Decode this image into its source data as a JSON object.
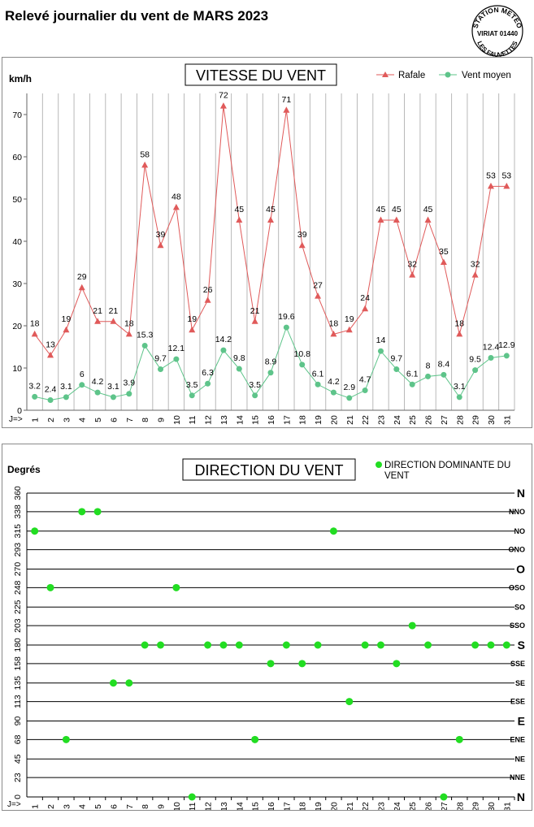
{
  "header": {
    "title": "Relevé journalier du vent de MARS 2023",
    "stamp_line1": "STATION METEO",
    "stamp_line2": "VIRIAT 01440",
    "stamp_line3": "LES FAUVETTES"
  },
  "chart_data": [
    {
      "type": "line",
      "title": "VITESSE DU VENT",
      "ylabel": "km/h",
      "xlabel": "J=>",
      "x": [
        1,
        2,
        3,
        4,
        5,
        6,
        7,
        8,
        9,
        10,
        11,
        12,
        13,
        14,
        15,
        16,
        17,
        18,
        19,
        20,
        21,
        22,
        23,
        24,
        25,
        26,
        27,
        28,
        29,
        30,
        31
      ],
      "ylim": [
        0,
        75
      ],
      "yticks": [
        0,
        10,
        20,
        30,
        40,
        50,
        60,
        70
      ],
      "grid": "vertical",
      "legend": "top-right",
      "series": [
        {
          "name": "Rafale",
          "color": "#e05a5a",
          "marker": "triangle",
          "values": [
            18,
            13,
            19,
            29,
            21,
            21,
            18,
            58,
            39,
            48,
            19,
            26,
            72,
            45,
            21,
            45,
            71,
            39,
            27,
            18,
            19,
            24,
            45,
            45,
            32,
            45,
            35,
            18,
            32,
            53,
            53
          ]
        },
        {
          "name": "Vent moyen",
          "color": "#5ec48a",
          "marker": "circle",
          "values": [
            3.2,
            2.4,
            3.1,
            6,
            4.2,
            3.1,
            3.9,
            15.3,
            9.7,
            12.1,
            3.5,
            6.3,
            14.2,
            9.8,
            3.5,
            8.9,
            19.6,
            10.8,
            6.1,
            4.2,
            2.9,
            4.7,
            14,
            9.7,
            6.1,
            8,
            8.4,
            3.1,
            9.5,
            12.4,
            12.9
          ]
        }
      ]
    },
    {
      "type": "scatter",
      "title": "DIRECTION DU VENT",
      "ylabel": "Degrés",
      "xlabel": "J=>",
      "x": [
        1,
        2,
        3,
        4,
        5,
        6,
        7,
        8,
        9,
        10,
        11,
        12,
        13,
        14,
        15,
        16,
        17,
        18,
        19,
        20,
        21,
        22,
        23,
        24,
        25,
        26,
        27,
        28,
        29,
        30,
        31
      ],
      "ylim": [
        0,
        360
      ],
      "yticks": [
        0,
        23,
        45,
        68,
        90,
        113,
        135,
        158,
        180,
        203,
        225,
        248,
        270,
        293,
        315,
        338,
        360
      ],
      "compass": [
        "N",
        "NNE",
        "NE",
        "ENE",
        "E",
        "ESE",
        "SE",
        "SSE",
        "S",
        "SSO",
        "SO",
        "OSO",
        "O",
        "ONO",
        "NO",
        "NNO",
        "N"
      ],
      "grid": "horizontal",
      "legend": "top-right",
      "series": [
        {
          "name": "DIRECTION DOMINANTE DU VENT",
          "color": "#22dd22",
          "values": [
            315,
            248,
            68,
            338,
            338,
            135,
            135,
            180,
            180,
            248,
            0,
            180,
            180,
            180,
            68,
            158,
            180,
            158,
            180,
            315,
            113,
            180,
            180,
            158,
            203,
            180,
            0,
            68,
            180,
            180,
            180
          ]
        }
      ]
    }
  ]
}
